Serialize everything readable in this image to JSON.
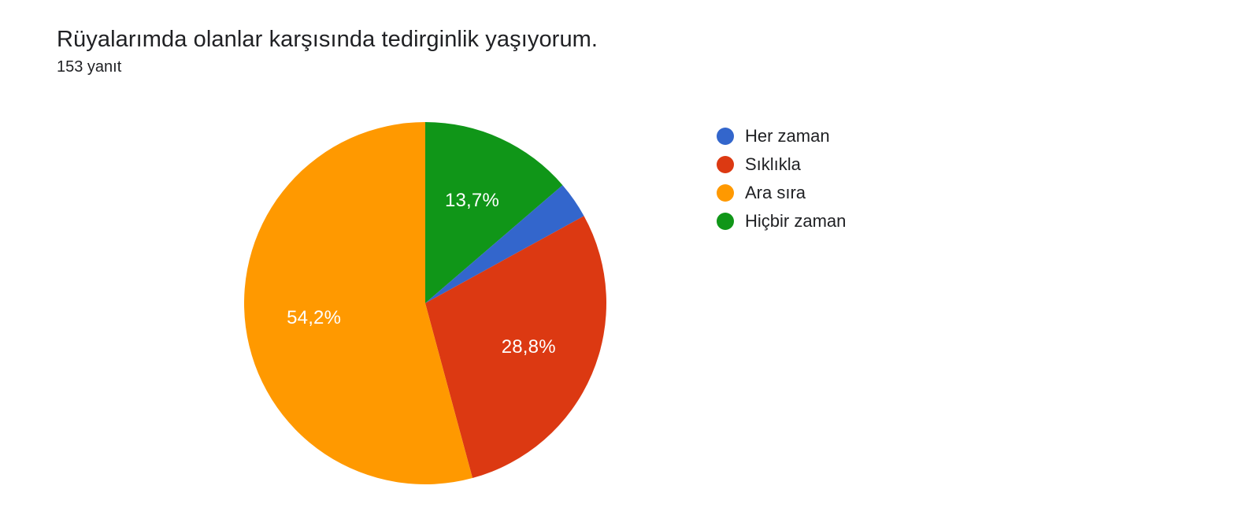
{
  "header": {
    "title": "Rüyalarımda olanlar karşısında tedirginlik yaşıyorum.",
    "subtitle": "153 yanıt"
  },
  "chart": {
    "type": "pie",
    "background_color": "#ffffff",
    "radius": 230,
    "start_angle_deg": -90,
    "sweep_direction": "clockwise",
    "label_color": "#ffffff",
    "label_fontsize": 24,
    "title_fontsize": 29,
    "subtitle_fontsize": 20,
    "text_color": "#202124",
    "slices": [
      {
        "key": "hicbir_zaman",
        "label": "Hiçbir zaman",
        "value": 13.7,
        "pct_label": "13,7%",
        "color": "#109618",
        "show_label": true
      },
      {
        "key": "her_zaman",
        "label": "Her zaman",
        "value": 3.3,
        "pct_label": "3,3%",
        "color": "#3366cc",
        "show_label": false
      },
      {
        "key": "siklikla",
        "label": "Sıklıkla",
        "value": 28.8,
        "pct_label": "28,8%",
        "color": "#dc3912",
        "show_label": true
      },
      {
        "key": "ara_sira",
        "label": "Ara sıra",
        "value": 54.2,
        "pct_label": "54,2%",
        "color": "#ff9900",
        "show_label": true
      }
    ]
  },
  "legend": {
    "dot_size": 22,
    "label_fontsize": 22,
    "items": [
      {
        "label": "Her zaman",
        "color": "#3366cc"
      },
      {
        "label": "Sıklıkla",
        "color": "#dc3912"
      },
      {
        "label": "Ara sıra",
        "color": "#ff9900"
      },
      {
        "label": "Hiçbir zaman",
        "color": "#109618"
      }
    ]
  }
}
